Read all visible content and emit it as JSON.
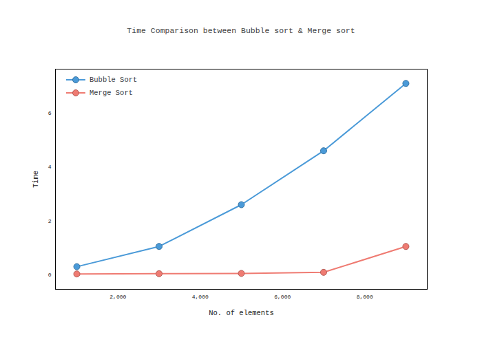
{
  "chart_data": {
    "type": "line",
    "title": "Time Comparison between Bubble sort & Merge sort",
    "x_label": "No. of elements",
    "y_label": "Time",
    "x": [
      1000,
      3000,
      5000,
      7000,
      9000
    ],
    "series": [
      {
        "name": "Bubble Sort",
        "color": "#4a9ad8",
        "marker": "circle",
        "line_style": "solid",
        "values": [
          0.3,
          1.05,
          2.6,
          4.6,
          7.1
        ]
      },
      {
        "name": "Merge Sort",
        "color": "#ef7b72",
        "marker": "circle",
        "line_style": "solid",
        "values": [
          0.03,
          0.04,
          0.05,
          0.09,
          1.05
        ]
      }
    ],
    "xlim": [
      480,
      9520
    ],
    "ylim": [
      -0.54,
      7.63
    ],
    "xticks": [
      2000,
      4000,
      6000,
      8000
    ],
    "yticks": [
      0,
      2,
      4,
      6
    ],
    "grid": false,
    "legend": "top-left"
  }
}
